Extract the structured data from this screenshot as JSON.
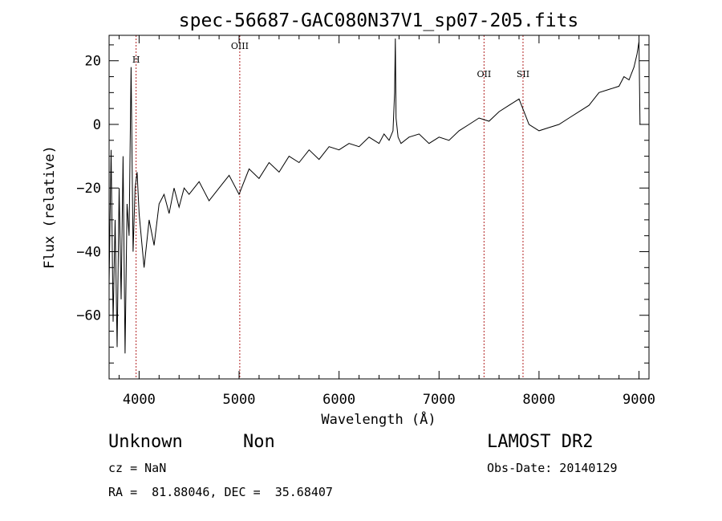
{
  "chart_data": {
    "type": "line",
    "title": "spec-56687-GAC080N37V1_sp07-205.fits",
    "xlabel": "Wavelength (Å)",
    "ylabel": "Flux (relative)",
    "xlim": [
      3700,
      9100
    ],
    "ylim": [
      -80,
      28
    ],
    "xticks": [
      4000,
      5000,
      6000,
      7000,
      8000,
      9000
    ],
    "xtick_labels": [
      "4000",
      "5000",
      "6000",
      "7000",
      "8000",
      "9000"
    ],
    "yticks": [
      20,
      0,
      -20,
      -40,
      -60
    ],
    "ytick_labels": [
      "20",
      "0",
      "−20",
      "−40",
      "−60"
    ],
    "grid": false,
    "line_color": "#000000",
    "marker_color": "#b22222",
    "annotations": [
      {
        "label": "H",
        "x": 3970
      },
      {
        "label": "OIII",
        "x": 5007
      },
      {
        "label": "OII",
        "x": 7450
      },
      {
        "label": "SII",
        "x": 7840
      }
    ],
    "series": [
      {
        "x": [
          3700,
          3720,
          3740,
          3760,
          3780,
          3800,
          3820,
          3840,
          3860,
          3880,
          3900,
          3920,
          3940,
          3960,
          3980,
          4000,
          4050,
          4100,
          4150,
          4200,
          4250,
          4300,
          4350,
          4400,
          4450,
          4500,
          4600,
          4700,
          4800,
          4900,
          5000,
          5100,
          5200,
          5300,
          5400,
          5500,
          5600,
          5700,
          5800,
          5900,
          6000,
          6100,
          6200,
          6300,
          6400,
          6450,
          6500,
          6540,
          6556,
          6563,
          6570,
          6590,
          6620,
          6700,
          6800,
          6900,
          7000,
          7100,
          7200,
          7300,
          7400,
          7500,
          7600,
          7700,
          7800,
          7850,
          7900,
          8000,
          8100,
          8200,
          8300,
          8400,
          8500,
          8600,
          8700,
          8800,
          8850,
          8900,
          8950,
          8980,
          9000,
          9010
        ],
        "y": [
          -50,
          -8,
          -62,
          -30,
          -70,
          -20,
          -55,
          -10,
          -72,
          -25,
          -35,
          18,
          -40,
          -20,
          -15,
          -28,
          -45,
          -30,
          -38,
          -25,
          -22,
          -28,
          -20,
          -26,
          -20,
          -22,
          -18,
          -24,
          -20,
          -16,
          -22,
          -14,
          -17,
          -12,
          -15,
          -10,
          -12,
          -8,
          -11,
          -7,
          -8,
          -6,
          -7,
          -4,
          -6,
          -3,
          -5,
          -2,
          10,
          27,
          2,
          -4,
          -6,
          -4,
          -3,
          -6,
          -4,
          -5,
          -2,
          0,
          2,
          1,
          4,
          6,
          8,
          4,
          0,
          -2,
          -1,
          0,
          2,
          4,
          6,
          10,
          11,
          12,
          15,
          14,
          18,
          22,
          26,
          0
        ]
      }
    ]
  },
  "info": {
    "object_class": "Unknown",
    "object_subclass": "Non",
    "survey": "LAMOST DR2",
    "cz": "cz = NaN",
    "obs_date": "Obs-Date: 20140129",
    "coords": "RA =  81.88046, DEC =  35.68407"
  }
}
